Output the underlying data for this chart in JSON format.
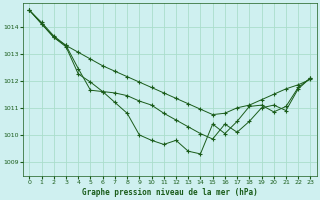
{
  "title": "Graphe pression niveau de la mer (hPa)",
  "background_color": "#cff0f0",
  "grid_color": "#aaddcc",
  "line_color": "#1a5c1a",
  "xlim": [
    -0.5,
    23.5
  ],
  "ylim": [
    1008.5,
    1014.85
  ],
  "yticks": [
    1009,
    1010,
    1011,
    1012,
    1013,
    1014
  ],
  "xticks": [
    0,
    1,
    2,
    3,
    4,
    5,
    6,
    7,
    8,
    9,
    10,
    11,
    12,
    13,
    14,
    15,
    16,
    17,
    18,
    19,
    20,
    21,
    22,
    23
  ],
  "series1_x": [
    0,
    1,
    2,
    3,
    4,
    5,
    6,
    7,
    8,
    9,
    10,
    11,
    12,
    13,
    14,
    15,
    16,
    17,
    18,
    19,
    20,
    21,
    22,
    23
  ],
  "series1_y": [
    1014.6,
    1014.15,
    1013.65,
    1013.3,
    1013.05,
    1012.8,
    1012.55,
    1012.35,
    1012.15,
    1011.95,
    1011.75,
    1011.55,
    1011.35,
    1011.15,
    1010.95,
    1010.75,
    1010.8,
    1011.0,
    1011.1,
    1011.3,
    1011.5,
    1011.7,
    1011.85,
    1012.05
  ],
  "series2_x": [
    0,
    1,
    2,
    3,
    4,
    5,
    6,
    7,
    8,
    9,
    10,
    11,
    12,
    13,
    14,
    15,
    16,
    17,
    18,
    19,
    20,
    21,
    22,
    23
  ],
  "series2_y": [
    1014.6,
    1014.1,
    1013.6,
    1013.25,
    1012.25,
    1011.95,
    1011.6,
    1011.55,
    1011.45,
    1011.25,
    1011.1,
    1010.8,
    1010.55,
    1010.3,
    1010.05,
    1009.85,
    1010.4,
    1010.1,
    1010.5,
    1011.0,
    1011.1,
    1010.9,
    1011.7,
    1012.1
  ],
  "series3_x": [
    0,
    1,
    2,
    3,
    4,
    5,
    6,
    7,
    8,
    9,
    10,
    11,
    12,
    13,
    14,
    15,
    16,
    17,
    18,
    19,
    20,
    21,
    22,
    23
  ],
  "series3_y": [
    1014.6,
    1014.1,
    1013.6,
    1013.3,
    1012.45,
    1011.65,
    1011.6,
    1011.2,
    1010.8,
    1010.0,
    1009.8,
    1009.65,
    1009.8,
    1009.4,
    1009.3,
    1010.4,
    1010.05,
    1010.5,
    1011.05,
    1011.1,
    1010.85,
    1011.05,
    1011.75,
    1012.1
  ]
}
